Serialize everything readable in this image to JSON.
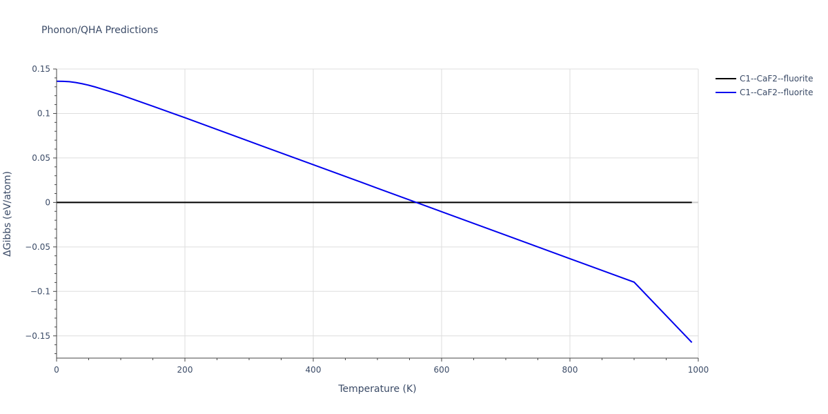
{
  "chart_data": {
    "type": "line",
    "title": "Phonon/QHA Predictions",
    "xlabel": "Temperature (K)",
    "ylabel": "ΔGibbs (eV/atom)",
    "xlim": [
      0,
      1000
    ],
    "ylim": [
      -0.175,
      0.15
    ],
    "xticks": [
      0,
      200,
      400,
      600,
      800,
      1000
    ],
    "xtick_labels": [
      "0",
      "200",
      "400",
      "600",
      "800",
      "1000"
    ],
    "yticks": [
      0.15,
      0.1,
      0.05,
      0,
      -0.05,
      -0.1,
      -0.15
    ],
    "ytick_labels": [
      "0.15",
      "0.1",
      "0.05",
      "0",
      "−0.05",
      "−0.1",
      "−0.15"
    ],
    "grid": true,
    "legend_position": "top-right",
    "series": [
      {
        "name": "C1--CaF2--fluorite",
        "color": "#000000",
        "x": [
          0,
          990
        ],
        "y": [
          0,
          0
        ]
      },
      {
        "name": "C1--CaF2--fluorite",
        "color": "#0000ee",
        "x": [
          0,
          10,
          20,
          30,
          40,
          50,
          60,
          80,
          100,
          150,
          200,
          300,
          400,
          475,
          500,
          600,
          700,
          800,
          900,
          990
        ],
        "y": [
          0.1362,
          0.1361,
          0.1357,
          0.1348,
          0.1334,
          0.1318,
          0.1298,
          0.1254,
          0.1208,
          0.1082,
          0.0952,
          0.0688,
          0.0424,
          0.0226,
          0.016,
          -0.0104,
          -0.0368,
          -0.0632,
          -0.0896,
          -0.1574
        ]
      }
    ]
  }
}
